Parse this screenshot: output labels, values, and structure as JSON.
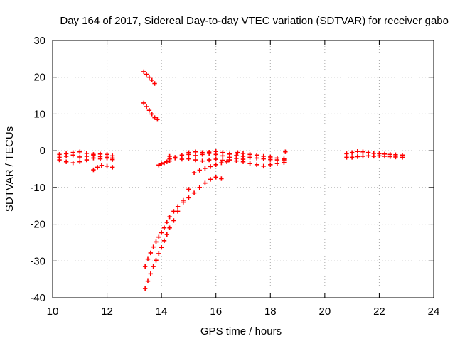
{
  "chart_data": {
    "type": "scatter",
    "title": "Day 164 of 2017, Sidereal Day-to-day VTEC variation (SDTVAR) for receiver gabo",
    "xlabel": "GPS time / hours",
    "ylabel": "SDTVAR / TECUs",
    "xlim": [
      10,
      24
    ],
    "ylim": [
      -40,
      30
    ],
    "xticks": [
      10,
      12,
      14,
      16,
      18,
      20,
      22,
      24
    ],
    "yticks": [
      -40,
      -30,
      -20,
      -10,
      0,
      10,
      20,
      30
    ],
    "grid": true,
    "marker": "plus",
    "color": "#ff0000",
    "series": [
      {
        "x": [
          10.25,
          10.5,
          10.75,
          11.0,
          11.25,
          11.5,
          11.75,
          12.0,
          12.2
        ],
        "y": [
          -1.0,
          -0.8,
          -0.5,
          -0.3,
          -0.7,
          -1.2,
          -0.9,
          -1.0,
          -1.4
        ]
      },
      {
        "x": [
          10.25,
          10.5,
          10.75,
          11.0,
          11.25,
          11.5,
          11.75,
          12.0,
          12.2
        ],
        "y": [
          -2.5,
          -3.0,
          -3.3,
          -3.0,
          -2.5,
          -2.0,
          -2.2,
          -2.0,
          -2.4
        ]
      },
      {
        "x": [
          10.25,
          10.5,
          10.75,
          11.0,
          11.25,
          11.5,
          11.75,
          12.0,
          12.2
        ],
        "y": [
          -1.8,
          -1.5,
          -1.2,
          -1.7,
          -1.5,
          -1.0,
          -1.6,
          -1.8,
          -2.0
        ]
      },
      {
        "x": [
          11.5,
          11.65,
          11.8,
          12.0,
          12.2
        ],
        "y": [
          -5.2,
          -4.5,
          -4.0,
          -4.2,
          -4.5
        ]
      },
      {
        "x": [
          13.35,
          13.45,
          13.55,
          13.65,
          13.75
        ],
        "y": [
          21.5,
          20.8,
          20.0,
          19.2,
          18.3
        ]
      },
      {
        "x": [
          13.35,
          13.45,
          13.55,
          13.65,
          13.75,
          13.85
        ],
        "y": [
          13.0,
          12.0,
          11.0,
          10.0,
          9.0,
          8.5
        ]
      },
      {
        "x": [
          13.4,
          13.5,
          13.6,
          13.7,
          13.8,
          13.9,
          14.0,
          14.1,
          14.2,
          14.3,
          14.45,
          14.6,
          14.8,
          15.0,
          15.2,
          15.4,
          15.6,
          15.8,
          16.0,
          16.2
        ],
        "y": [
          -31.5,
          -29.5,
          -27.8,
          -26.2,
          -24.8,
          -23.5,
          -22.3,
          -21.0,
          -19.5,
          -18.0,
          -16.5,
          -15.2,
          -14.0,
          -12.8,
          -11.5,
          -10.0,
          -8.8,
          -7.8,
          -7.2,
          -7.6
        ]
      },
      {
        "x": [
          13.4,
          13.5,
          13.6,
          13.7,
          13.8,
          13.9,
          14.0,
          14.1,
          14.2,
          14.3,
          14.45,
          14.6,
          14.8,
          15.0
        ],
        "y": [
          -37.5,
          -35.5,
          -33.5,
          -31.5,
          -29.8,
          -28.0,
          -26.3,
          -24.5,
          -22.8,
          -21.0,
          -19.0,
          -16.5,
          -13.5,
          -10.5
        ]
      },
      {
        "x": [
          13.9,
          14.0,
          14.1,
          14.2,
          14.3
        ],
        "y": [
          -3.9,
          -3.6,
          -3.3,
          -3.0,
          -2.8
        ]
      },
      {
        "x": [
          14.3,
          14.5,
          14.75,
          15.0,
          15.25,
          15.5,
          15.75,
          16.0,
          16.25,
          16.5,
          16.75,
          17.0,
          17.25,
          17.5,
          17.75,
          18.0,
          18.25,
          18.5
        ],
        "y": [
          -2.2,
          -1.8,
          -1.2,
          -0.5,
          -0.3,
          -0.5,
          -0.4,
          -0.2,
          -0.5,
          -0.9,
          -1.3,
          -1.5,
          -1.8,
          -2.0,
          -2.2,
          -2.4,
          -2.5,
          -2.5
        ]
      },
      {
        "x": [
          14.3,
          14.5,
          14.75,
          15.0,
          15.25,
          15.5,
          15.75,
          16.0,
          16.25,
          16.5,
          16.75,
          17.0,
          17.25,
          17.5,
          17.75,
          18.0,
          18.25,
          18.5
        ],
        "y": [
          -1.5,
          -2.0,
          -2.3,
          -2.2,
          -2.5,
          -2.8,
          -2.5,
          -2.3,
          -2.6,
          -2.5,
          -2.8,
          -3.0,
          -3.5,
          -3.8,
          -4.2,
          -3.8,
          -3.5,
          -3.2
        ]
      },
      {
        "x": [
          15.0,
          15.25,
          15.5,
          15.75,
          16.0,
          16.25,
          16.5,
          16.75,
          17.0
        ],
        "y": [
          -1.0,
          -1.3,
          -1.0,
          -0.7,
          -1.0,
          -1.4,
          -1.8,
          -2.1,
          -2.3
        ]
      },
      {
        "x": [
          15.2,
          15.4,
          15.6,
          15.8,
          16.0,
          16.2,
          16.4
        ],
        "y": [
          -6.0,
          -5.3,
          -4.8,
          -4.3,
          -3.8,
          -3.3,
          -3.0
        ]
      },
      {
        "x": [
          16.8,
          17.0,
          17.25,
          17.5,
          17.75,
          18.0,
          18.25,
          18.5
        ],
        "y": [
          -0.5,
          -0.7,
          -1.0,
          -1.2,
          -1.5,
          -1.7,
          -2.0,
          -2.2
        ]
      },
      {
        "x": [
          18.55
        ],
        "y": [
          -0.3
        ]
      },
      {
        "x": [
          20.8,
          21.0,
          21.2,
          21.4,
          21.6,
          21.8,
          22.0,
          22.2,
          22.4,
          22.6,
          22.85
        ],
        "y": [
          -0.8,
          -0.5,
          -0.2,
          -0.3,
          -0.5,
          -0.7,
          -0.8,
          -0.9,
          -1.0,
          -1.1,
          -1.2
        ]
      },
      {
        "x": [
          20.8,
          21.0,
          21.2,
          21.4,
          21.6,
          21.8,
          22.0,
          22.2,
          22.4,
          22.6,
          22.85
        ],
        "y": [
          -1.8,
          -1.8,
          -1.6,
          -1.5,
          -1.4,
          -1.5,
          -1.4,
          -1.5,
          -1.6,
          -1.7,
          -1.8
        ]
      }
    ]
  }
}
